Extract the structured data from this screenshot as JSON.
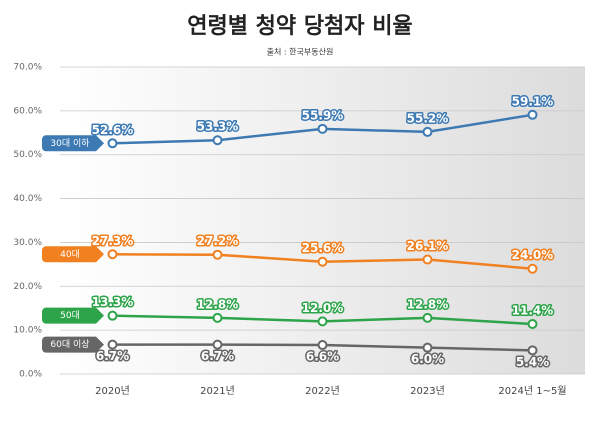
{
  "chart_data": {
    "type": "line",
    "title": "연령별 청약 당첨자 비율",
    "subtitle": "출처 : 한국부동산원",
    "categories": [
      "2020년",
      "2021년",
      "2022년",
      "2023년",
      "2024년 1~5월"
    ],
    "series": [
      {
        "name": "30대 이하",
        "color": "#3d7ab3",
        "values": [
          52.6,
          53.3,
          55.9,
          55.2,
          59.1
        ],
        "value_labels": [
          "52.6%",
          "53.3%",
          "55.9%",
          "55.2%",
          "59.1%"
        ]
      },
      {
        "name": "40대",
        "color": "#f08020",
        "values": [
          27.3,
          27.2,
          25.6,
          26.1,
          24.0
        ],
        "value_labels": [
          "27.3%",
          "27.2%",
          "25.6%",
          "26.1%",
          "24.0%"
        ]
      },
      {
        "name": "50대",
        "color": "#2ea44a",
        "values": [
          13.3,
          12.8,
          12.0,
          12.8,
          11.4
        ],
        "value_labels": [
          "13.3%",
          "12.8%",
          "12.0%",
          "12.8%",
          "11.4%"
        ]
      },
      {
        "name": "60대 이상",
        "color": "#666666",
        "values": [
          6.7,
          6.7,
          6.6,
          6.0,
          5.4
        ],
        "value_labels": [
          "6.7%",
          "6.7%",
          "6.6%",
          "6.0%",
          "5.4%"
        ]
      }
    ],
    "ylim": [
      0,
      70
    ],
    "yticks": [
      {
        "value": 0,
        "label": "0.0%"
      },
      {
        "value": 10,
        "label": "10.0%"
      },
      {
        "value": 20,
        "label": "20.0%"
      },
      {
        "value": 30,
        "label": "30.0%"
      },
      {
        "value": 40,
        "label": "40.0%"
      },
      {
        "value": 50,
        "label": "50.0%"
      },
      {
        "value": 60,
        "label": "60.0%"
      },
      {
        "value": 70,
        "label": "70.0%"
      }
    ],
    "grid": true
  }
}
